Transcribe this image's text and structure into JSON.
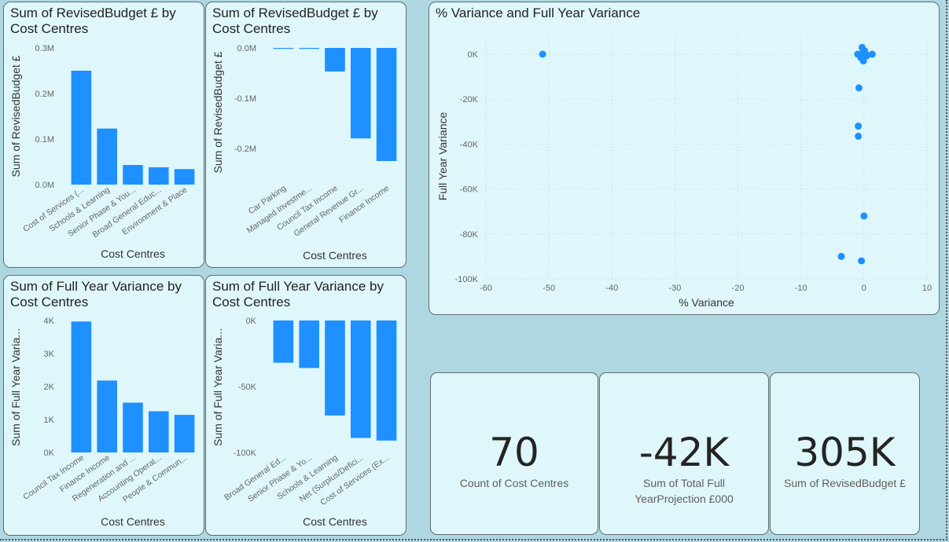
{
  "colors": {
    "bar": "#1e90ff",
    "grid": "#b9d6dc",
    "axis_text": "#666666",
    "title": "#222222"
  },
  "charts": [
    {
      "title": "Sum of RevisedBudget £ by Cost Centres",
      "chart_data": {
        "type": "bar",
        "title": "Sum of RevisedBudget £ by Cost Centres",
        "xlabel": "Cost Centres",
        "ylabel": "Sum of RevisedBudget £",
        "ylim": [
          0,
          300000
        ],
        "yticks": [
          0,
          100000,
          200000,
          300000
        ],
        "ytick_labels": [
          "0.0M",
          "0.1M",
          "0.2M",
          "0.3M"
        ],
        "categories": [
          "Cost of Services (...",
          "Schools & Learning",
          "Senior Phase & You...",
          "Broad General Educ...",
          "Environment & Place"
        ],
        "values": [
          250000,
          123000,
          43000,
          38000,
          34000
        ]
      }
    },
    {
      "title": "Sum of RevisedBudget £ by Cost Centres",
      "chart_data": {
        "type": "bar",
        "title": "Sum of RevisedBudget £ by Cost Centres",
        "xlabel": "Cost Centres",
        "ylabel": "Sum of RevisedBudget £",
        "ylim": [
          -250000,
          0
        ],
        "yticks": [
          0,
          -100000,
          -200000
        ],
        "ytick_labels": [
          "0.0M",
          "-0.1M",
          "-0.2M"
        ],
        "categories": [
          "Car Parking",
          "Managed Investme...",
          "Council Tax Income",
          "General Revenue Gr...",
          "Finance Income"
        ],
        "values": [
          -1000,
          -1000,
          -47000,
          -180000,
          -225000
        ]
      }
    },
    {
      "title": "Sum of Full Year Variance by Cost Centres",
      "chart_data": {
        "type": "bar",
        "title": "Sum of Full Year Variance by Cost Centres",
        "xlabel": "Cost Centres",
        "ylabel": "Sum of Full Year Varia...",
        "ylim": [
          0,
          4000
        ],
        "yticks": [
          0,
          1000,
          2000,
          3000,
          4000
        ],
        "ytick_labels": [
          "0K",
          "1K",
          "2K",
          "3K",
          "4K"
        ],
        "categories": [
          "Council Tax Income",
          "Finance Income",
          "Regeneration and ...",
          "Accounting Operat...",
          "People & Commun..."
        ],
        "values": [
          3970,
          2180,
          1510,
          1250,
          1140
        ]
      }
    },
    {
      "title": "Sum of Full Year Variance by Cost Centres",
      "chart_data": {
        "type": "bar",
        "title": "Sum of Full Year Variance by Cost Centres",
        "xlabel": "Cost Centres",
        "ylabel": "Sum of Full Year Varia...",
        "ylim": [
          -100000,
          0
        ],
        "yticks": [
          0,
          -50000,
          -100000
        ],
        "ytick_labels": [
          "0K",
          "-50K",
          "-100K"
        ],
        "categories": [
          "Broad General Ed...",
          "Senior Phase & Yo...",
          "Schools & Learning",
          "Net (Surplus/Defici...",
          "Cost of Services (Ex..."
        ],
        "values": [
          -32000,
          -36000,
          -72000,
          -89000,
          -91000
        ]
      }
    },
    {
      "title": "% Variance and Full Year Variance",
      "chart_data": {
        "type": "scatter",
        "title": "% Variance and Full Year Variance",
        "xlabel": "% Variance",
        "ylabel": "Full Year Variance",
        "xlim": [
          -60,
          10
        ],
        "ylim": [
          -100000,
          0
        ],
        "xticks": [
          -60,
          -50,
          -40,
          -30,
          -20,
          -10,
          0,
          10
        ],
        "xtick_labels": [
          "-60",
          "-50",
          "-40",
          "-30",
          "-20",
          "-10",
          "0",
          "10"
        ],
        "yticks": [
          0,
          -20000,
          -40000,
          -60000,
          -80000,
          -100000
        ],
        "ytick_labels": [
          "0K",
          "-20K",
          "-40K",
          "-60K",
          "-80K",
          "-100K"
        ],
        "grid": true,
        "points": [
          {
            "x": -51,
            "y": 0
          },
          {
            "x": -1,
            "y": 0
          },
          {
            "x": -0.6,
            "y": 0
          },
          {
            "x": -0.2,
            "y": 0
          },
          {
            "x": 0.3,
            "y": 0
          },
          {
            "x": 1.3,
            "y": 0
          },
          {
            "x": -0.3,
            "y": 3000
          },
          {
            "x": 0.1,
            "y": 1500
          },
          {
            "x": -0.5,
            "y": -1500
          },
          {
            "x": 0.4,
            "y": -800
          },
          {
            "x": -0.1,
            "y": -3000
          },
          {
            "x": -0.8,
            "y": -15000
          },
          {
            "x": -0.9,
            "y": -32000
          },
          {
            "x": -0.9,
            "y": -36500
          },
          {
            "x": 0,
            "y": -72000
          },
          {
            "x": -3.6,
            "y": -90000
          },
          {
            "x": -0.4,
            "y": -92000
          }
        ]
      }
    }
  ],
  "kpis": [
    {
      "value": "70",
      "label": "Count of Cost Centres"
    },
    {
      "value": "-42K",
      "label": "Sum of Total Full YearProjection £000"
    },
    {
      "value": "305K",
      "label": "Sum of RevisedBudget £"
    }
  ]
}
